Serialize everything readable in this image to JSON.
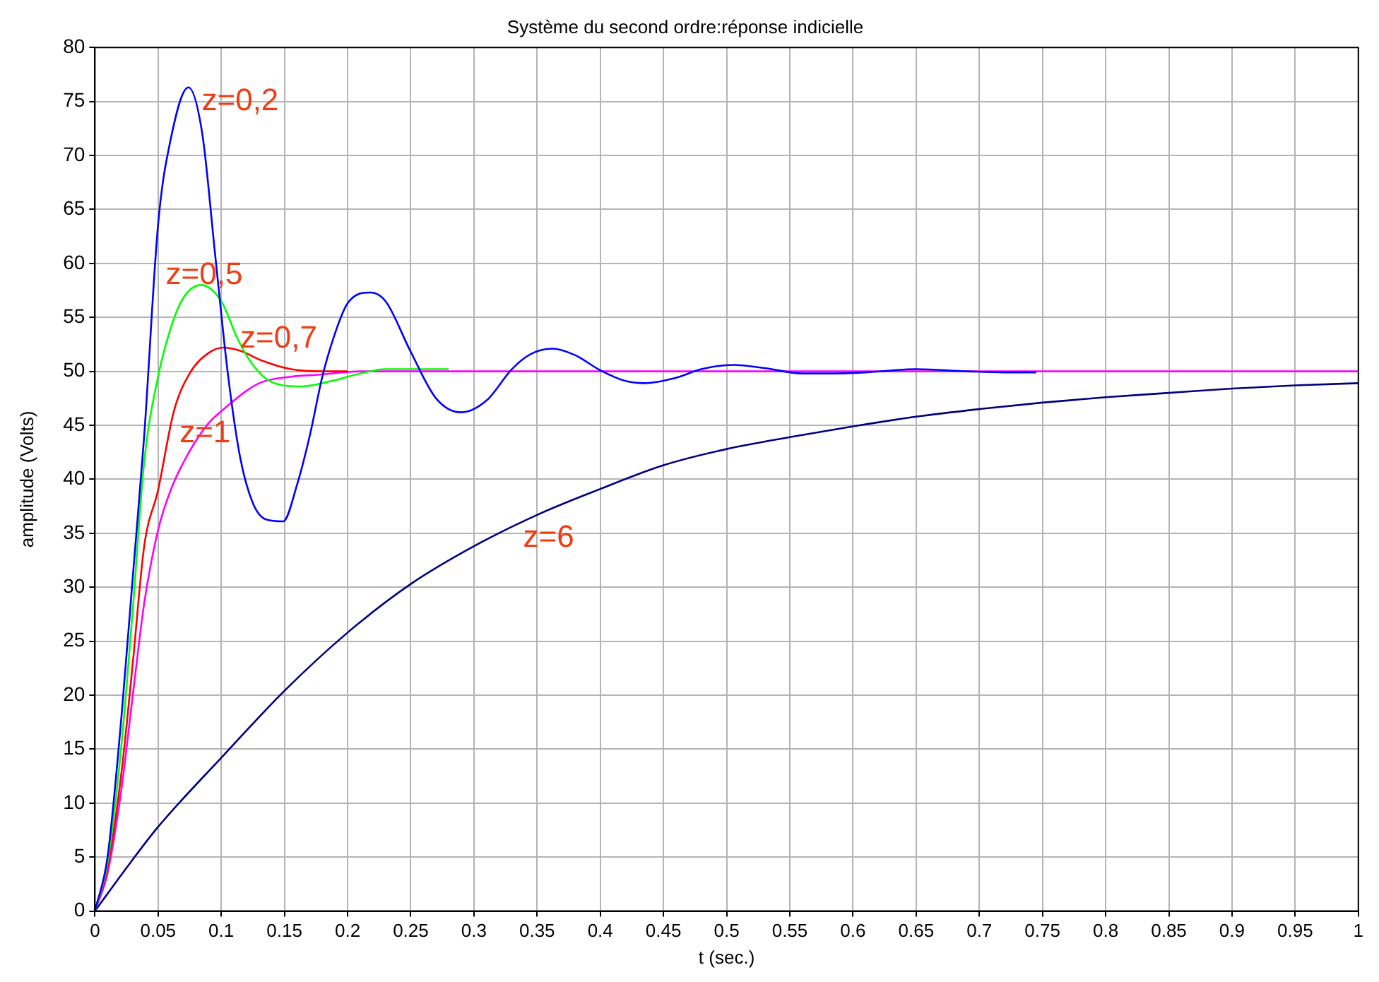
{
  "chart_data": {
    "type": "line",
    "title": "Système du second ordre:réponse indicielle",
    "xlabel": "t (sec.)",
    "ylabel": "amplitude (Volts)",
    "xlim": [
      0,
      1
    ],
    "xticks": [
      0,
      0.05,
      0.1,
      0.15,
      0.2,
      0.25,
      0.3,
      0.35,
      0.4,
      0.45,
      0.5,
      0.55,
      0.6,
      0.65,
      0.7,
      0.75,
      0.8,
      0.85,
      0.9,
      0.95,
      1
    ],
    "ylim": [
      0,
      80
    ],
    "yticks": [
      0,
      5,
      10,
      15,
      20,
      25,
      30,
      35,
      40,
      45,
      50,
      55,
      60,
      65,
      70,
      75,
      80
    ],
    "grid": true,
    "line_style": "solid",
    "marker": "none",
    "legend": false,
    "series": [
      {
        "name": "z=0,2",
        "color": "#0000ff",
        "x": [
          0,
          0.01,
          0.021,
          0.03,
          0.039,
          0.05,
          0.06,
          0.074,
          0.085,
          0.095,
          0.105,
          0.115,
          0.125,
          0.135,
          0.149,
          0.16,
          0.17,
          0.18,
          0.19,
          0.2,
          0.218,
          0.23,
          0.25,
          0.27,
          0.29,
          0.31,
          0.33,
          0.345,
          0.362,
          0.38,
          0.4,
          0.42,
          0.435,
          0.46,
          0.48,
          0.505,
          0.53,
          0.56,
          0.58,
          0.61,
          0.65,
          0.69,
          0.72,
          0.745
        ],
        "values": [
          0,
          5,
          18,
          31,
          44,
          63.6,
          71.5,
          76.3,
          72,
          61,
          50,
          42,
          37.8,
          36.3,
          36.1,
          39.5,
          44,
          49.5,
          53.5,
          56.3,
          57.3,
          56.5,
          51.8,
          47.5,
          46.2,
          47.3,
          50.2,
          51.6,
          52.1,
          51.5,
          50.1,
          49.1,
          48.9,
          49.4,
          50.2,
          50.6,
          50.3,
          49.8,
          49.8,
          49.9,
          50.2,
          50,
          49.9,
          49.9
        ]
      },
      {
        "name": "z=0,5",
        "color": "#00ff00",
        "x": [
          0,
          0.01,
          0.021,
          0.03,
          0.039,
          0.05,
          0.06,
          0.07,
          0.084,
          0.1,
          0.113,
          0.125,
          0.14,
          0.164,
          0.187,
          0.21,
          0.23,
          0.28
        ],
        "values": [
          0,
          4.5,
          15.4,
          28,
          41.6,
          49.5,
          54,
          56.8,
          58,
          56.5,
          53,
          50.6,
          49,
          48.6,
          49.1,
          49.8,
          50.2,
          50.2
        ]
      },
      {
        "name": "z=0,7",
        "color": "#ff0000",
        "x": [
          0,
          0.01,
          0.021,
          0.03,
          0.039,
          0.05,
          0.0625,
          0.075,
          0.09,
          0.102,
          0.115,
          0.132,
          0.155,
          0.18,
          0.2
        ],
        "values": [
          0,
          4,
          12.8,
          23,
          33.8,
          39,
          46.3,
          49.8,
          51.7,
          52.2,
          51.9,
          51,
          50.2,
          50,
          50
        ]
      },
      {
        "name": "z=1",
        "color": "#ff00ff",
        "x": [
          0,
          0.01,
          0.021,
          0.03,
          0.039,
          0.05,
          0.06,
          0.074,
          0.09,
          0.103,
          0.12,
          0.132,
          0.155,
          0.178,
          0.21,
          1
        ],
        "values": [
          0,
          3.5,
          11.3,
          20,
          28.5,
          35.3,
          39,
          42.4,
          45.2,
          46.6,
          48.2,
          49,
          49.5,
          49.7,
          50,
          50
        ]
      },
      {
        "name": "z=6",
        "color": "#000080",
        "x": [
          0,
          0.025,
          0.05,
          0.1,
          0.15,
          0.2,
          0.25,
          0.3,
          0.35,
          0.4,
          0.45,
          0.5,
          0.55,
          0.6,
          0.65,
          0.7,
          0.75,
          0.8,
          0.85,
          0.9,
          0.95,
          1
        ],
        "values": [
          0,
          4,
          7.8,
          14.2,
          20.4,
          25.8,
          30.3,
          33.8,
          36.7,
          39.1,
          41.3,
          42.8,
          43.9,
          44.9,
          45.8,
          46.5,
          47.1,
          47.6,
          48,
          48.4,
          48.7,
          48.9
        ]
      }
    ]
  }
}
